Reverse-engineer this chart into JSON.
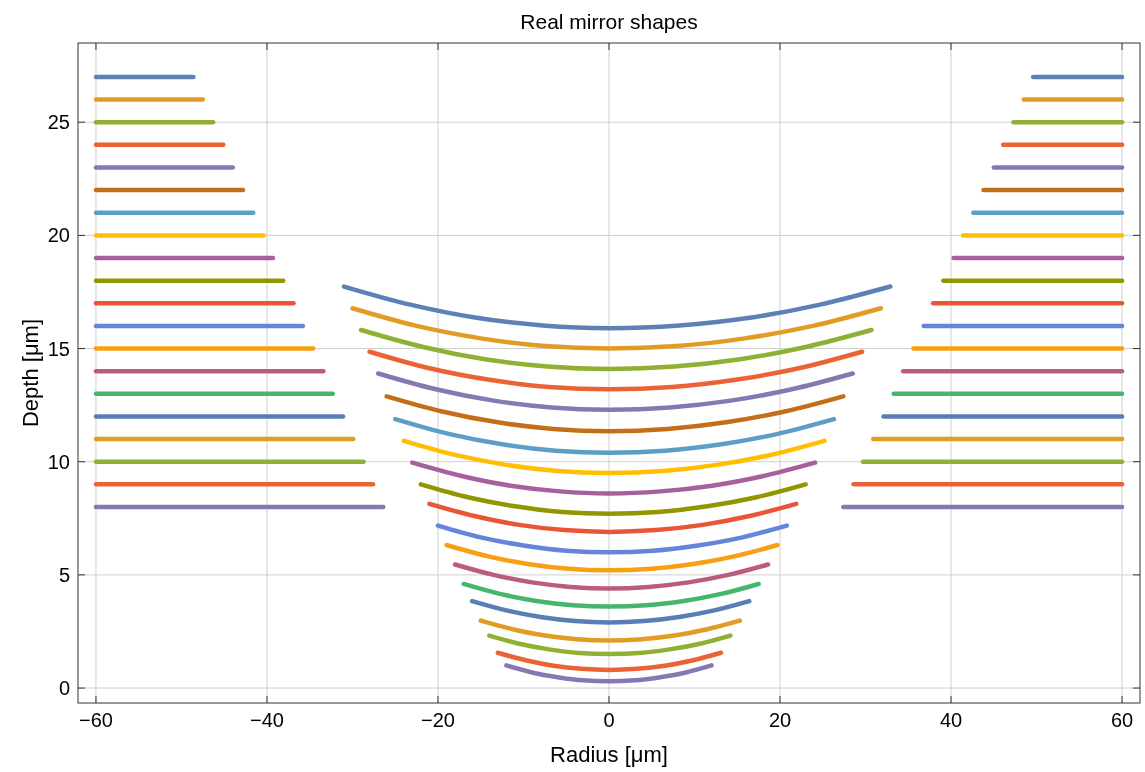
{
  "chart_data": {
    "type": "line",
    "title": "Real mirror shapes",
    "xlabel": "Radius [μm]",
    "ylabel": "Depth [μm]",
    "xlim": [
      -62.1,
      62.1
    ],
    "ylim": [
      -0.66,
      28.5
    ],
    "xticks": [
      -60,
      -40,
      -20,
      0,
      20,
      40,
      60
    ],
    "yticks": [
      0,
      5,
      10,
      15,
      20,
      25
    ],
    "grid": true,
    "line_style": "solid",
    "series": [
      {
        "color": "#8778b3",
        "x": [
          -60,
          -26.4
        ],
        "values": [
          8,
          8
        ]
      },
      {
        "color": "#8778b3",
        "x": [
          -12,
          -9,
          -6,
          -3,
          0,
          3,
          6,
          9,
          12
        ],
        "values": [
          1.0,
          0.69,
          0.48,
          0.34,
          0.3,
          0.34,
          0.48,
          0.69,
          1.0
        ]
      },
      {
        "color": "#8778b3",
        "x": [
          27.4,
          60
        ],
        "values": [
          8,
          8
        ]
      },
      {
        "color": "#eb6235",
        "x": [
          -60,
          -27.6
        ],
        "values": [
          9,
          9
        ]
      },
      {
        "color": "#eb6235",
        "x": [
          -13,
          -9.75,
          -6.5,
          -3.25,
          0,
          3.28,
          6.55,
          9.83,
          13.1
        ],
        "values": [
          1.56,
          1.23,
          0.99,
          0.85,
          0.8,
          0.85,
          0.99,
          1.23,
          1.56
        ]
      },
      {
        "color": "#eb6235",
        "x": [
          28.6,
          60
        ],
        "values": [
          9,
          9
        ]
      },
      {
        "color": "#8fb032",
        "x": [
          -60,
          -28.7
        ],
        "values": [
          10,
          10
        ]
      },
      {
        "color": "#8fb032",
        "x": [
          -14,
          -10.5,
          -7,
          -3.5,
          0,
          3.55,
          7.1,
          10.65,
          14.2
        ],
        "values": [
          2.32,
          1.96,
          1.71,
          1.55,
          1.5,
          1.55,
          1.71,
          1.96,
          2.32
        ]
      },
      {
        "color": "#8fb032",
        "x": [
          29.7,
          60
        ],
        "values": [
          10,
          10
        ]
      },
      {
        "color": "#e19c24",
        "x": [
          -60,
          -29.9
        ],
        "values": [
          11,
          11
        ]
      },
      {
        "color": "#e19c24",
        "x": [
          -15,
          -11.25,
          -7.5,
          -3.75,
          0,
          3.83,
          7.65,
          11.48,
          15.3
        ],
        "values": [
          2.98,
          2.6,
          2.32,
          2.16,
          2.1,
          2.16,
          2.32,
          2.6,
          2.98
        ]
      },
      {
        "color": "#e19c24",
        "x": [
          30.9,
          60
        ],
        "values": [
          11,
          11
        ]
      },
      {
        "color": "#5a7db5",
        "x": [
          -60,
          -31.1
        ],
        "values": [
          12,
          12
        ]
      },
      {
        "color": "#5a7db5",
        "x": [
          -16,
          -12,
          -8,
          -4,
          0,
          4.1,
          8.2,
          12.3,
          16.4
        ],
        "values": [
          3.84,
          3.43,
          3.14,
          2.96,
          2.9,
          2.96,
          3.14,
          3.43,
          3.84
        ]
      },
      {
        "color": "#5a7db5",
        "x": [
          32.1,
          60
        ],
        "values": [
          12,
          12
        ]
      },
      {
        "color": "#47b66d",
        "x": [
          -60,
          -32.3
        ],
        "values": [
          13,
          13
        ]
      },
      {
        "color": "#47b66d",
        "x": [
          -17,
          -12.75,
          -8.5,
          -4.25,
          0,
          4.38,
          8.75,
          13.13,
          17.5
        ],
        "values": [
          4.6,
          4.16,
          3.85,
          3.66,
          3.6,
          3.66,
          3.85,
          4.16,
          4.6
        ]
      },
      {
        "color": "#47b66d",
        "x": [
          33.3,
          60
        ],
        "values": [
          13,
          13
        ]
      },
      {
        "color": "#bc5b80",
        "x": [
          -60,
          -33.4
        ],
        "values": [
          14,
          14
        ]
      },
      {
        "color": "#bc5b80",
        "x": [
          -18,
          -13.5,
          -9,
          -4.5,
          0,
          4.65,
          9.3,
          13.95,
          18.6
        ],
        "values": [
          5.46,
          5.0,
          4.67,
          4.47,
          4.4,
          4.47,
          4.67,
          5.0,
          5.46
        ]
      },
      {
        "color": "#bc5b80",
        "x": [
          34.4,
          60
        ],
        "values": [
          14,
          14
        ]
      },
      {
        "color": "#f89f13",
        "x": [
          -60,
          -34.6
        ],
        "values": [
          15,
          15
        ]
      },
      {
        "color": "#f89f13",
        "x": [
          -19,
          -14.25,
          -9.5,
          -4.75,
          0,
          4.93,
          9.85,
          14.78,
          19.7
        ],
        "values": [
          6.32,
          5.83,
          5.48,
          5.27,
          5.2,
          5.27,
          5.48,
          5.83,
          6.32
        ]
      },
      {
        "color": "#f89f13",
        "x": [
          35.6,
          60
        ],
        "values": [
          15,
          15
        ]
      },
      {
        "color": "#6685d9",
        "x": [
          -60,
          -35.8
        ],
        "values": [
          16,
          16
        ]
      },
      {
        "color": "#6685d9",
        "x": [
          -20,
          -15,
          -10,
          -5,
          0,
          5.2,
          10.4,
          15.6,
          20.8
        ],
        "values": [
          7.18,
          6.66,
          6.3,
          6.07,
          6.0,
          6.07,
          6.3,
          6.66,
          7.18
        ]
      },
      {
        "color": "#6685d9",
        "x": [
          36.8,
          60
        ],
        "values": [
          16,
          16
        ]
      },
      {
        "color": "#e95536",
        "x": [
          -60,
          -36.9
        ],
        "values": [
          17,
          17
        ]
      },
      {
        "color": "#e95536",
        "x": [
          -21,
          -15.75,
          -10.5,
          -5.25,
          0,
          5.48,
          10.95,
          16.43,
          21.9
        ],
        "values": [
          8.14,
          7.6,
          7.21,
          6.98,
          6.9,
          6.98,
          7.21,
          7.6,
          8.14
        ]
      },
      {
        "color": "#e95536",
        "x": [
          37.9,
          60
        ],
        "values": [
          17,
          17
        ]
      },
      {
        "color": "#929600",
        "x": [
          -60,
          -38.1
        ],
        "values": [
          18,
          18
        ]
      },
      {
        "color": "#929600",
        "x": [
          -22,
          -16.5,
          -11,
          -5.5,
          0,
          5.75,
          11.5,
          17.25,
          23
        ],
        "values": [
          9.0,
          8.43,
          8.03,
          7.78,
          7.7,
          7.78,
          8.03,
          8.43,
          9.0
        ]
      },
      {
        "color": "#929600",
        "x": [
          39.1,
          60
        ],
        "values": [
          18,
          18
        ]
      },
      {
        "color": "#a5609d",
        "x": [
          -60,
          -39.3
        ],
        "values": [
          19,
          19
        ]
      },
      {
        "color": "#a5609d",
        "x": [
          -23,
          -17.25,
          -11.5,
          -5.75,
          0,
          6.03,
          12.05,
          18.08,
          24.1
        ],
        "values": [
          9.96,
          9.37,
          8.94,
          8.69,
          8.6,
          8.69,
          8.94,
          9.37,
          9.96
        ]
      },
      {
        "color": "#a5609d",
        "x": [
          40.3,
          60
        ],
        "values": [
          19,
          19
        ]
      },
      {
        "color": "#ffbf00",
        "x": [
          -60,
          -40.4
        ],
        "values": [
          20,
          20
        ]
      },
      {
        "color": "#ffbf00",
        "x": [
          -24,
          -18,
          -12,
          -6,
          0,
          6.3,
          12.6,
          18.9,
          25.2
        ],
        "values": [
          10.92,
          10.3,
          9.86,
          9.59,
          9.5,
          9.59,
          9.86,
          10.3,
          10.92
        ]
      },
      {
        "color": "#ffbf00",
        "x": [
          41.4,
          60
        ],
        "values": [
          20,
          20
        ]
      },
      {
        "color": "#5d9ec7",
        "x": [
          -60,
          -41.6
        ],
        "values": [
          21,
          21
        ]
      },
      {
        "color": "#5d9ec7",
        "x": [
          -25,
          -18.75,
          -12.5,
          -6.25,
          0,
          6.58,
          13.15,
          19.73,
          26.3
        ],
        "values": [
          11.88,
          11.23,
          10.77,
          10.49,
          10.4,
          10.49,
          10.77,
          11.23,
          11.88
        ]
      },
      {
        "color": "#5d9ec7",
        "x": [
          42.6,
          60
        ],
        "values": [
          21,
          21
        ]
      },
      {
        "color": "#c56e1a",
        "x": [
          -60,
          -42.8
        ],
        "values": [
          22,
          22
        ]
      },
      {
        "color": "#c56e1a",
        "x": [
          -26,
          -19.5,
          -13,
          -6.5,
          0,
          6.85,
          13.7,
          20.55,
          27.4
        ],
        "values": [
          12.89,
          12.22,
          11.74,
          11.45,
          11.35,
          11.45,
          11.74,
          12.22,
          12.89
        ]
      },
      {
        "color": "#c56e1a",
        "x": [
          43.8,
          60
        ],
        "values": [
          22,
          22
        ]
      },
      {
        "color": "#8778b3",
        "x": [
          -60,
          -44.0
        ],
        "values": [
          23,
          23
        ]
      },
      {
        "color": "#8778b3",
        "x": [
          -27,
          -20.25,
          -13.5,
          -6.75,
          0,
          7.13,
          14.25,
          21.38,
          28.5
        ],
        "values": [
          13.9,
          13.2,
          12.7,
          12.4,
          12.3,
          12.4,
          12.7,
          13.2,
          13.9
        ]
      },
      {
        "color": "#8778b3",
        "x": [
          45.0,
          60
        ],
        "values": [
          23,
          23
        ]
      },
      {
        "color": "#eb6235",
        "x": [
          -60,
          -45.1
        ],
        "values": [
          24,
          24
        ]
      },
      {
        "color": "#eb6235",
        "x": [
          -28,
          -21,
          -14,
          -7,
          0,
          7.4,
          14.8,
          22.2,
          29.6
        ],
        "values": [
          14.86,
          14.13,
          13.62,
          13.3,
          13.2,
          13.3,
          13.62,
          14.13,
          14.86
        ]
      },
      {
        "color": "#eb6235",
        "x": [
          46.1,
          60
        ],
        "values": [
          24,
          24
        ]
      },
      {
        "color": "#8fb032",
        "x": [
          -60,
          -46.3
        ],
        "values": [
          25,
          25
        ]
      },
      {
        "color": "#8fb032",
        "x": [
          -29,
          -21.75,
          -14.5,
          -7.25,
          0,
          7.68,
          15.35,
          23.03,
          30.7
        ],
        "values": [
          15.82,
          15.07,
          14.53,
          14.21,
          14.1,
          14.21,
          14.53,
          15.07,
          15.82
        ]
      },
      {
        "color": "#8fb032",
        "x": [
          47.3,
          60
        ],
        "values": [
          25,
          25
        ]
      },
      {
        "color": "#e19c24",
        "x": [
          -60,
          -47.5
        ],
        "values": [
          26,
          26
        ]
      },
      {
        "color": "#e19c24",
        "x": [
          -30,
          -22.5,
          -15,
          -7.5,
          0,
          7.95,
          15.9,
          23.85,
          31.8
        ],
        "values": [
          16.78,
          16.0,
          15.45,
          15.11,
          15.0,
          15.11,
          15.45,
          16.0,
          16.78
        ]
      },
      {
        "color": "#e19c24",
        "x": [
          48.5,
          60
        ],
        "values": [
          26,
          26
        ]
      },
      {
        "color": "#5e81b5",
        "x": [
          -60,
          -48.6
        ],
        "values": [
          27,
          27
        ]
      },
      {
        "color": "#5e81b5",
        "x": [
          -31,
          -23.25,
          -15.5,
          -7.75,
          0,
          8.23,
          16.45,
          24.68,
          32.9
        ],
        "values": [
          17.74,
          16.94,
          16.36,
          16.02,
          15.9,
          16.02,
          16.36,
          16.94,
          17.74
        ]
      },
      {
        "color": "#5e81b5",
        "x": [
          49.6,
          60
        ],
        "values": [
          27,
          27
        ]
      }
    ]
  }
}
